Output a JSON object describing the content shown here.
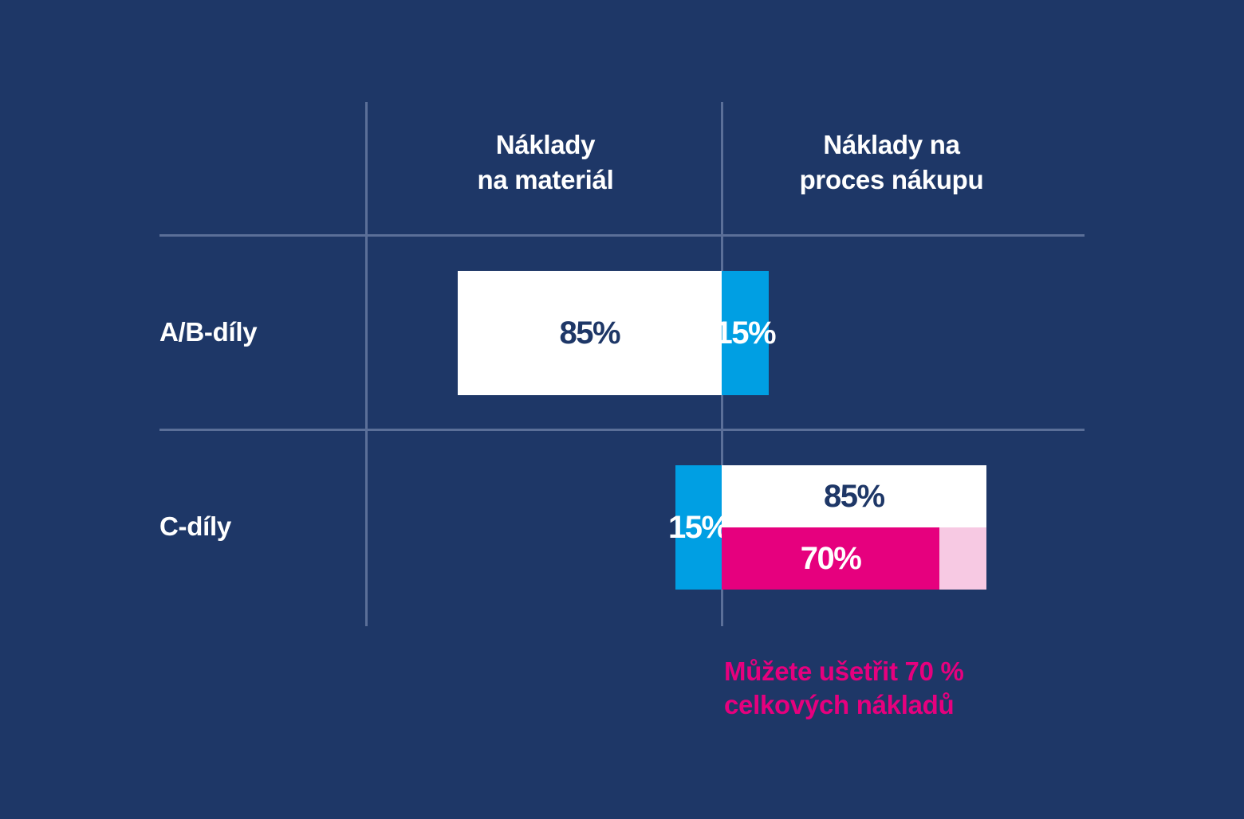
{
  "colors": {
    "background": "#1e3767",
    "grid": "#5b6f98",
    "material": "#ffffff",
    "process": "#009fe3",
    "savings": "#e6007e",
    "savings_rest": "#f7c9e3",
    "text_dark": "#1e3767",
    "text_light": "#ffffff"
  },
  "chart_data": {
    "type": "bar",
    "columns": [
      "Náklady\nna materiál",
      "Náklady na\nproces nákupu"
    ],
    "rows": [
      {
        "label": "A/B-díly",
        "material": {
          "value": 85,
          "label": "85%"
        },
        "process": {
          "value": 15,
          "label": "15%"
        }
      },
      {
        "label": "C-díly",
        "material": {
          "value": 15,
          "label": "15%"
        },
        "process": {
          "value": 85,
          "label": "85%"
        },
        "savings": {
          "value": 70,
          "label": "70%"
        }
      }
    ],
    "annotation": "Můžete ušetřit 70 %\ncelkových nákladů"
  }
}
